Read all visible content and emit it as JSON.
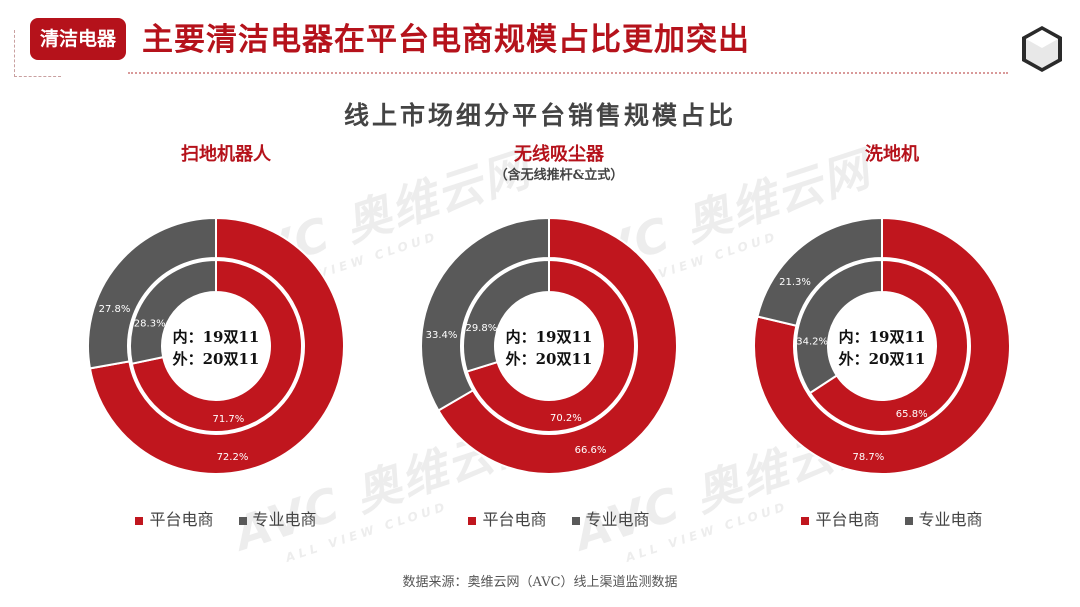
{
  "header": {
    "tag": "清洁电器",
    "title": "主要清洁电器在平台电商规模占比更加突出"
  },
  "chart_title": "线上市场细分平台销售规模占比",
  "colors": {
    "platform": "#c0161e",
    "professional": "#595959"
  },
  "legend": {
    "platform": "平台电商",
    "professional": "专业电商"
  },
  "center_label": {
    "inner": "内：19双11",
    "outer": "外：20双11"
  },
  "chart_data": [
    {
      "type": "pie",
      "title": "扫地机器人",
      "subtitle": "",
      "categories": [
        "平台电商",
        "专业电商"
      ],
      "series": [
        {
          "name": "19双11",
          "ring": "inner",
          "values": [
            71.7,
            28.3
          ],
          "labels": [
            "71.7%",
            "28.3%"
          ]
        },
        {
          "name": "20双11",
          "ring": "outer",
          "values": [
            72.2,
            27.8
          ],
          "labels": [
            "72.2%",
            "27.8%"
          ]
        }
      ]
    },
    {
      "type": "pie",
      "title": "无线吸尘器",
      "subtitle": "（含无线推杆&立式）",
      "categories": [
        "平台电商",
        "专业电商"
      ],
      "series": [
        {
          "name": "19双11",
          "ring": "inner",
          "values": [
            70.2,
            29.8
          ],
          "labels": [
            "70.2%",
            "29.8%"
          ]
        },
        {
          "name": "20双11",
          "ring": "outer",
          "values": [
            66.6,
            33.4
          ],
          "labels": [
            "66.6%",
            "33.4%"
          ]
        }
      ]
    },
    {
      "type": "pie",
      "title": "洗地机",
      "subtitle": "",
      "categories": [
        "平台电商",
        "专业电商"
      ],
      "series": [
        {
          "name": "19双11",
          "ring": "inner",
          "values": [
            65.8,
            34.2
          ],
          "labels": [
            "65.8%",
            "34.2%"
          ]
        },
        {
          "name": "20双11",
          "ring": "outer",
          "values": [
            78.7,
            21.3
          ],
          "labels": [
            "78.7%",
            "21.3%"
          ]
        }
      ]
    }
  ],
  "watermark": {
    "main": "AVC 奥维云网",
    "sub": "ALL VIEW CLOUD"
  },
  "source": "数据来源：奥维云网（AVC）线上渠道监测数据"
}
